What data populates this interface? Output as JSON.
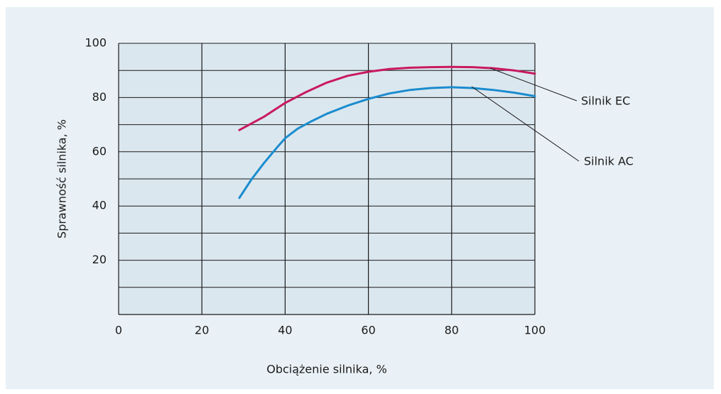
{
  "chart_data": {
    "type": "line",
    "x_label": "Obciążenie silnika, %",
    "y_label": "Sprawność silnika, %",
    "xlim": [
      0,
      100
    ],
    "ylim": [
      0,
      100
    ],
    "xticks": [
      0,
      20,
      40,
      60,
      80,
      100
    ],
    "yticks": [
      20,
      40,
      60,
      80,
      100
    ],
    "y_minor_grid": [
      10,
      30,
      50,
      70,
      90
    ],
    "grid": true,
    "series": [
      {
        "name": "Silnik EC",
        "color": "#c9195f",
        "x": [
          29,
          35,
          40,
          45,
          50,
          55,
          60,
          65,
          70,
          75,
          80,
          85,
          90,
          95,
          100
        ],
        "values": [
          68,
          73,
          78,
          82,
          85.5,
          88,
          89.5,
          90.5,
          91,
          91.2,
          91.3,
          91.2,
          90.8,
          90,
          88.8
        ]
      },
      {
        "name": "Silnik AC",
        "color": "#1a8cce",
        "x": [
          29,
          32,
          35,
          38,
          40,
          43,
          46,
          50,
          55,
          60,
          65,
          70,
          75,
          80,
          85,
          90,
          95,
          100
        ],
        "values": [
          43,
          50,
          56,
          61.5,
          65,
          68.5,
          71,
          74,
          77,
          79.5,
          81.5,
          82.8,
          83.5,
          83.8,
          83.5,
          82.8,
          81.8,
          80.5
        ]
      }
    ]
  }
}
